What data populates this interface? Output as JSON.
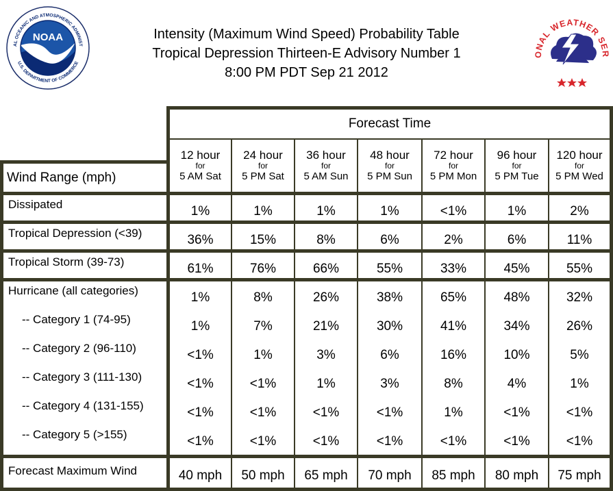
{
  "header": {
    "title_line1": "Intensity (Maximum Wind Speed) Probability Table",
    "title_line2": "Tropical Depression Thirteen-E Advisory Number 1",
    "title_line3": "8:00 PM PDT Sep 21 2012"
  },
  "logos": {
    "noaa": {
      "icon": "noaa-logo-icon",
      "center_text": "NOAA",
      "ring_top": "NATIONAL OCEANIC AND ATMOSPHERIC ADMINISTRATION",
      "ring_bottom": "U.S. DEPARTMENT OF COMMERCE",
      "colors": {
        "ring": "#ffffff",
        "sky": "#1c55a8",
        "sea": "#0b2a74",
        "bird": "#ffffff"
      }
    },
    "nws": {
      "icon": "nws-logo-icon",
      "ring_text": "NATIONAL WEATHER SERVICE",
      "colors": {
        "text": "#d8262c",
        "cloud": "#2c2f8a",
        "bolt": "#ffffff",
        "stars": "#d8262c"
      }
    }
  },
  "table": {
    "forecast_time_label": "Forecast Time",
    "wind_range_label": "Wind Range (mph)",
    "for_label": "for",
    "columns": [
      {
        "hour": "12 hour",
        "time": "5 AM Sat"
      },
      {
        "hour": "24 hour",
        "time": "5 PM Sat"
      },
      {
        "hour": "36 hour",
        "time": "5 AM Sun"
      },
      {
        "hour": "48 hour",
        "time": "5 PM Sun"
      },
      {
        "hour": "72 hour",
        "time": "5 PM Mon"
      },
      {
        "hour": "96 hour",
        "time": "5 PM Tue"
      },
      {
        "hour": "120 hour",
        "time": "5 PM Wed"
      }
    ],
    "rows": [
      {
        "label": "Dissipated",
        "values": [
          "1%",
          "1%",
          "1%",
          "1%",
          "<1%",
          "1%",
          "2%"
        ]
      },
      {
        "label": "Tropical Depression (<39)",
        "values": [
          "36%",
          "15%",
          "8%",
          "6%",
          "2%",
          "6%",
          "11%"
        ]
      },
      {
        "label": "Tropical Storm (39-73)",
        "values": [
          "61%",
          "76%",
          "66%",
          "55%",
          "33%",
          "45%",
          "55%"
        ]
      },
      {
        "label": "Hurricane (all categories)",
        "values": [
          "1%",
          "8%",
          "26%",
          "38%",
          "65%",
          "48%",
          "32%"
        ]
      },
      {
        "label": "-- Category 1 (74-95)",
        "values": [
          "1%",
          "7%",
          "21%",
          "30%",
          "41%",
          "34%",
          "26%"
        ]
      },
      {
        "label": "-- Category 2 (96-110)",
        "values": [
          "<1%",
          "1%",
          "3%",
          "6%",
          "16%",
          "10%",
          "5%"
        ]
      },
      {
        "label": "-- Category 3 (111-130)",
        "values": [
          "<1%",
          "<1%",
          "1%",
          "3%",
          "8%",
          "4%",
          "1%"
        ]
      },
      {
        "label": "-- Category 4 (131-155)",
        "values": [
          "<1%",
          "<1%",
          "<1%",
          "<1%",
          "1%",
          "<1%",
          "<1%"
        ]
      },
      {
        "label": "-- Category 5 (>155)",
        "values": [
          "<1%",
          "<1%",
          "<1%",
          "<1%",
          "<1%",
          "<1%",
          "<1%"
        ]
      }
    ],
    "max_wind": {
      "label": "Forecast Maximum Wind",
      "values": [
        "40 mph",
        "50 mph",
        "65 mph",
        "70 mph",
        "85 mph",
        "80 mph",
        "75 mph"
      ]
    }
  }
}
